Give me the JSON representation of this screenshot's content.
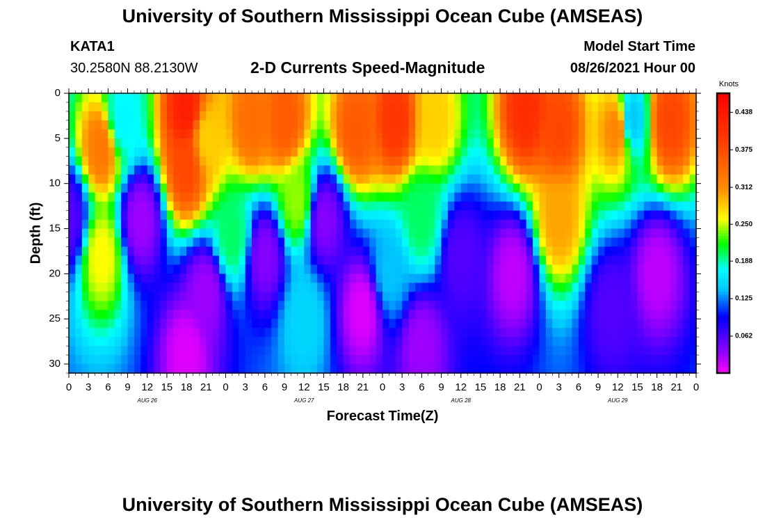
{
  "page": {
    "title_top": "University of Southern Mississippi Ocean Cube (AMSEAS)",
    "title_bottom": "University of Southern Mississippi Ocean Cube (AMSEAS)",
    "station_id": "KATA1",
    "station_coords": "30.2580N  88.2130W",
    "model_label": "Model Start Time",
    "model_time": "08/26/2021 Hour 00"
  },
  "chart_data": {
    "type": "heatmap",
    "title": "2-D Currents Speed-Magnitude",
    "xlabel": "Forecast Time(Z)",
    "ylabel": "Depth (ft)",
    "units": "Knots",
    "x_range_hours": [
      0,
      96
    ],
    "ylim": [
      0,
      31
    ],
    "y_ticks": [
      0,
      5,
      10,
      15,
      20,
      25,
      30
    ],
    "y_tick_labels": [
      "0",
      "5",
      "10",
      "15",
      "20",
      "25",
      "30"
    ],
    "x_tick_hours": [
      0,
      3,
      6,
      9,
      12,
      15,
      18,
      21,
      24,
      27,
      30,
      33,
      36,
      39,
      42,
      45,
      48,
      51,
      54,
      57,
      60,
      63,
      66,
      69,
      72,
      75,
      78,
      81,
      84,
      87,
      90,
      93,
      96
    ],
    "x_tick_labels": [
      "0",
      "3",
      "6",
      "9",
      "12",
      "15",
      "18",
      "21",
      "0",
      "3",
      "6",
      "9",
      "12",
      "15",
      "18",
      "21",
      "0",
      "3",
      "6",
      "9",
      "12",
      "15",
      "18",
      "21",
      "0",
      "3",
      "6",
      "9",
      "12",
      "15",
      "18",
      "21",
      "0"
    ],
    "date_labels": [
      {
        "hour": 12,
        "label": "AUG 26"
      },
      {
        "hour": 36,
        "label": "AUG 27"
      },
      {
        "hour": 60,
        "label": "AUG 28"
      },
      {
        "hour": 84,
        "label": "AUG 29"
      }
    ],
    "colorbar": {
      "min": 0.0,
      "max": 0.47,
      "ticks": [
        0.062,
        0.125,
        0.188,
        0.25,
        0.312,
        0.375,
        0.438
      ],
      "tick_labels": [
        "0.062",
        "0.125",
        "0.188",
        "0.250",
        "0.312",
        "0.375",
        "0.438"
      ]
    },
    "field_description": "Current speed (knots) vs forecast hour and depth. Hotspots (hour, depth ft, speed kn) define the field; speed interpolates from a background near 0.11 kn.",
    "hotspots": [
      {
        "hour": 5,
        "depth": 6,
        "speed": 0.33
      },
      {
        "hour": 5,
        "depth": 18,
        "speed": 0.26
      },
      {
        "hour": 18,
        "depth": 2,
        "speed": 0.43
      },
      {
        "hour": 18,
        "depth": 8,
        "speed": 0.38
      },
      {
        "hour": 21,
        "depth": 5,
        "speed": 0.28
      },
      {
        "hour": 28,
        "depth": 3,
        "speed": 0.34
      },
      {
        "hour": 33,
        "depth": 3,
        "speed": 0.36
      },
      {
        "hour": 35,
        "depth": 12,
        "speed": 0.24
      },
      {
        "hour": 44,
        "depth": 4,
        "speed": 0.36
      },
      {
        "hour": 50,
        "depth": 3,
        "speed": 0.4
      },
      {
        "hour": 56,
        "depth": 3,
        "speed": 0.28
      },
      {
        "hour": 70,
        "depth": 2,
        "speed": 0.41
      },
      {
        "hour": 75,
        "depth": 4,
        "speed": 0.38
      },
      {
        "hour": 75,
        "depth": 14,
        "speed": 0.3
      },
      {
        "hour": 84,
        "depth": 4,
        "speed": 0.32
      },
      {
        "hour": 92,
        "depth": 3,
        "speed": 0.38
      },
      {
        "hour": 11,
        "depth": 14,
        "speed": 0.03
      },
      {
        "hour": 21,
        "depth": 22,
        "speed": 0.03
      },
      {
        "hour": 18,
        "depth": 29,
        "speed": 0.01
      },
      {
        "hour": 39,
        "depth": 14,
        "speed": 0.04
      },
      {
        "hour": 45,
        "depth": 24,
        "speed": 0.01
      },
      {
        "hour": 60,
        "depth": 18,
        "speed": 0.06
      },
      {
        "hour": 68,
        "depth": 20,
        "speed": 0.02
      },
      {
        "hour": 90,
        "depth": 20,
        "speed": 0.02
      },
      {
        "hour": 0,
        "depth": 14,
        "speed": 0.06
      },
      {
        "hour": 30,
        "depth": 18,
        "speed": 0.04
      },
      {
        "hour": 83,
        "depth": 24,
        "speed": 0.06
      },
      {
        "hour": 54,
        "depth": 28,
        "speed": 0.03
      },
      {
        "hour": 25,
        "depth": 16,
        "speed": 0.2
      },
      {
        "hour": 54,
        "depth": 14,
        "speed": 0.2
      },
      {
        "hour": 49,
        "depth": 20,
        "speed": 0.14
      },
      {
        "hour": 8,
        "depth": 3,
        "speed": 0.17
      },
      {
        "hour": 36,
        "depth": 25,
        "speed": 0.15
      },
      {
        "hour": 86,
        "depth": 3,
        "speed": 0.14
      }
    ]
  }
}
